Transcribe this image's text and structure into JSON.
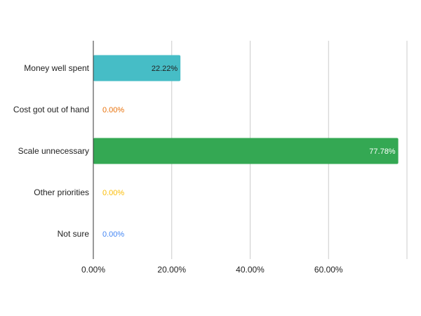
{
  "chart_data": {
    "type": "bar",
    "orientation": "horizontal",
    "title": "",
    "xlabel": "",
    "ylabel": "",
    "categories": [
      "Money well spent",
      "Cost got out of hand",
      "Scale unnecessary",
      "Other priorities",
      "Not sure"
    ],
    "values": [
      22.22,
      0.0,
      77.78,
      0.0,
      0.0
    ],
    "value_labels": [
      "22.22%",
      "0.00%",
      "77.78%",
      "0.00%",
      "0.00%"
    ],
    "colors": [
      "#46bdc6",
      "#e8710a",
      "#34a853",
      "#fbbc04",
      "#4285f4"
    ],
    "label_colors": [
      "#222222",
      "#e8710a",
      "#ffffff",
      "#fbbc04",
      "#4285f4"
    ],
    "xlim": [
      0,
      80
    ],
    "xticks": [
      0,
      20,
      40,
      60
    ],
    "xtick_labels": [
      "0.00%",
      "20.00%",
      "40.00%",
      "60.00%"
    ],
    "grid": "vertical",
    "legend": "none"
  }
}
